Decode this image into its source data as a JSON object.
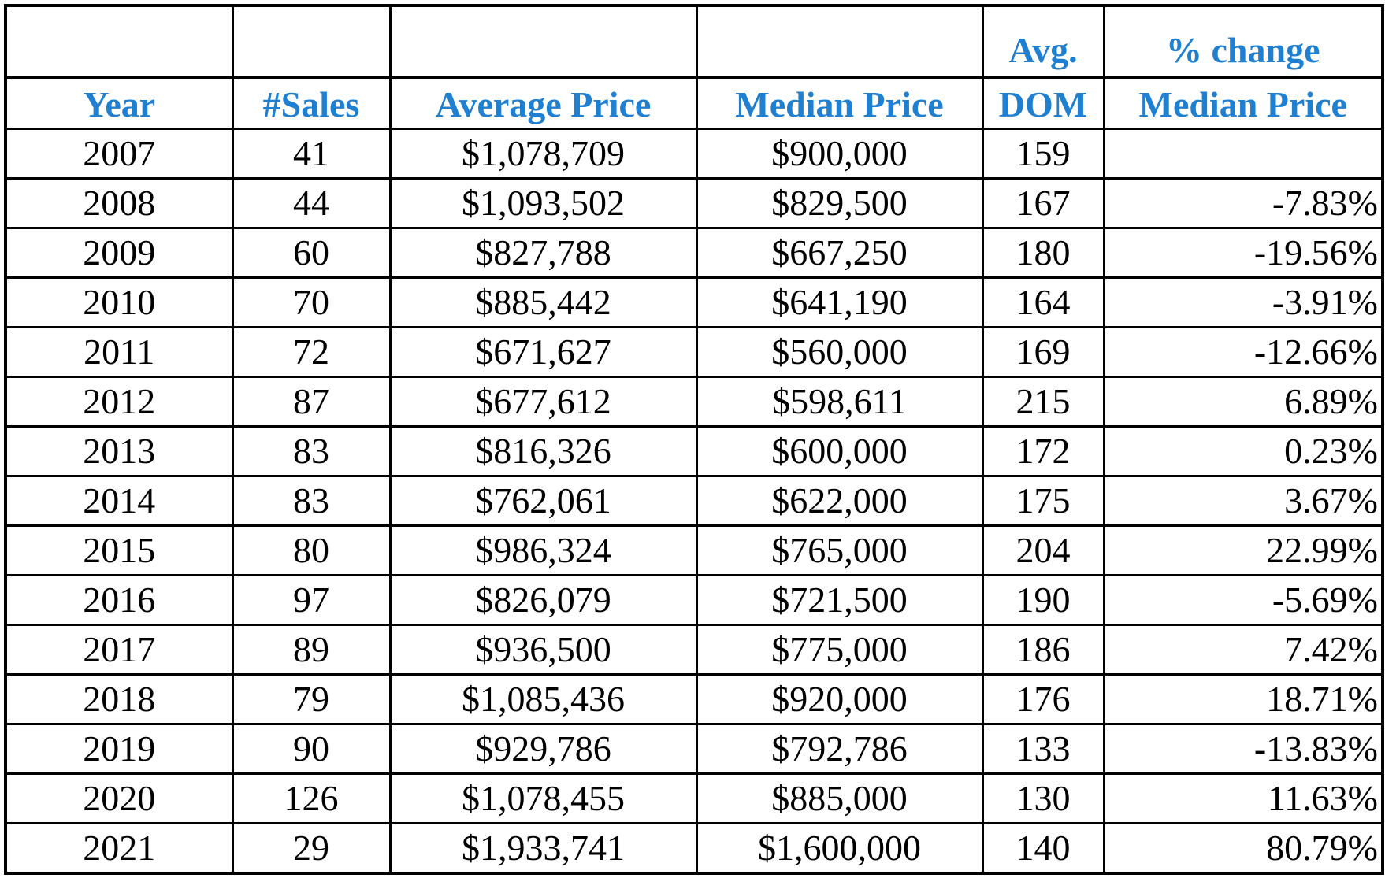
{
  "header": {
    "top": {
      "dom": "Avg.",
      "pct": "% change"
    },
    "bottom": {
      "year": "Year",
      "sales": "#Sales",
      "avg_price": "Average Price",
      "median_price": "Median Price",
      "dom": "DOM",
      "pct": "Median Price"
    }
  },
  "rows": [
    {
      "year": "2007",
      "sales": "41",
      "avg_price": "$1,078,709",
      "median_price": "$900,000",
      "dom": "159",
      "pct": ""
    },
    {
      "year": "2008",
      "sales": "44",
      "avg_price": "$1,093,502",
      "median_price": "$829,500",
      "dom": "167",
      "pct": "-7.83%"
    },
    {
      "year": "2009",
      "sales": "60",
      "avg_price": "$827,788",
      "median_price": "$667,250",
      "dom": "180",
      "pct": "-19.56%"
    },
    {
      "year": "2010",
      "sales": "70",
      "avg_price": "$885,442",
      "median_price": "$641,190",
      "dom": "164",
      "pct": "-3.91%"
    },
    {
      "year": "2011",
      "sales": "72",
      "avg_price": "$671,627",
      "median_price": "$560,000",
      "dom": "169",
      "pct": "-12.66%"
    },
    {
      "year": "2012",
      "sales": "87",
      "avg_price": "$677,612",
      "median_price": "$598,611",
      "dom": "215",
      "pct": "6.89%"
    },
    {
      "year": "2013",
      "sales": "83",
      "avg_price": "$816,326",
      "median_price": "$600,000",
      "dom": "172",
      "pct": "0.23%"
    },
    {
      "year": "2014",
      "sales": "83",
      "avg_price": "$762,061",
      "median_price": "$622,000",
      "dom": "175",
      "pct": "3.67%"
    },
    {
      "year": "2015",
      "sales": "80",
      "avg_price": "$986,324",
      "median_price": "$765,000",
      "dom": "204",
      "pct": "22.99%"
    },
    {
      "year": "2016",
      "sales": "97",
      "avg_price": "$826,079",
      "median_price": "$721,500",
      "dom": "190",
      "pct": "-5.69%"
    },
    {
      "year": "2017",
      "sales": "89",
      "avg_price": "$936,500",
      "median_price": "$775,000",
      "dom": "186",
      "pct": "7.42%"
    },
    {
      "year": "2018",
      "sales": "79",
      "avg_price": "$1,085,436",
      "median_price": "$920,000",
      "dom": "176",
      "pct": "18.71%"
    },
    {
      "year": "2019",
      "sales": "90",
      "avg_price": "$929,786",
      "median_price": "$792,786",
      "dom": "133",
      "pct": "-13.83%"
    },
    {
      "year": "2020",
      "sales": "126",
      "avg_price": "$1,078,455",
      "median_price": "$885,000",
      "dom": "130",
      "pct": "11.63%"
    },
    {
      "year": "2021",
      "sales": "29",
      "avg_price": "$1,933,741",
      "median_price": "$1,600,000",
      "dom": "140",
      "pct": "80.79%"
    }
  ],
  "colors": {
    "header_text": "#1f7fd0",
    "grid": "#000000",
    "body_text": "#000000"
  }
}
